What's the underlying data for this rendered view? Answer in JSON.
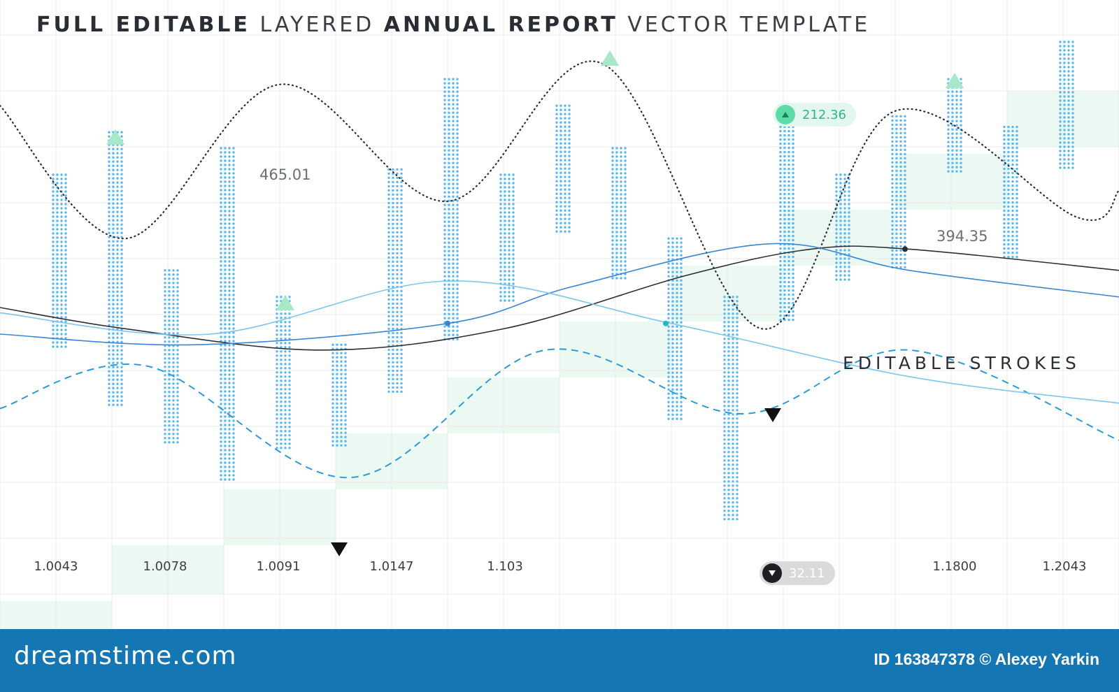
{
  "title": {
    "part1_bold": "FULL EDITABLE",
    "part2_light": "LAYERED",
    "part3_bold": "ANNUAL REPORT",
    "part4_light": "VECTOR TEMPLATE"
  },
  "annotations": {
    "value_a": "465.01",
    "value_b": "394.35",
    "strokes_label": "EDITABLE STROKES"
  },
  "badges": {
    "up": {
      "value": "212.36",
      "icon": "triangle-up-icon",
      "color": "#5cdba9"
    },
    "down": {
      "value": "32.11",
      "icon": "triangle-down-icon",
      "color": "#1d1f23"
    }
  },
  "footer": {
    "brand": "dreamstime.com",
    "credit": "ID 163847378 © Alexey Yarkin",
    "background": "#1576b4"
  },
  "colors": {
    "dots": "#5ab8ec",
    "mint": "#ecf9f2",
    "grid": "#e8eaec",
    "line_dark": "#2b2d33",
    "line_blue": "#3a86d6",
    "line_light": "#7cc6ef",
    "line_dashed": "#2a9ad9",
    "marker_up": "#a6e8c8",
    "marker_down": "#111111"
  },
  "chart_data": {
    "type": "line",
    "x_tick_labels": [
      "1.0043",
      "1.0078",
      "1.0091",
      "1.0147",
      "1.103",
      "1.1800",
      "1.2043"
    ],
    "grid": true,
    "series": [
      {
        "id": "dotted-wave",
        "style": "dotted",
        "color": "#2b2d33",
        "x": [
          0,
          180,
          400,
          640,
          860,
          1090,
          1280,
          1540,
          1600
        ],
        "y": [
          0.88,
          0.63,
          0.92,
          0.7,
          0.96,
          0.46,
          0.87,
          0.67,
          0.72
        ]
      },
      {
        "id": "dashed-wave",
        "style": "dashed",
        "color": "#2a9ad9",
        "x": [
          0,
          210,
          500,
          780,
          1060,
          1300,
          1600
        ],
        "y": [
          0.31,
          0.39,
          0.18,
          0.42,
          0.3,
          0.42,
          0.25
        ]
      },
      {
        "id": "dark-line",
        "style": "solid",
        "color": "#2b2d33",
        "x": [
          0,
          180,
          460,
          720,
          980,
          1160,
          1300,
          1600
        ],
        "y": [
          0.5,
          0.46,
          0.42,
          0.46,
          0.56,
          0.61,
          0.61,
          0.57
        ]
      },
      {
        "id": "blue-line",
        "style": "solid",
        "color": "#3a86d6",
        "x": [
          0,
          280,
          640,
          820,
          1100,
          1300,
          1600
        ],
        "y": [
          0.45,
          0.43,
          0.47,
          0.54,
          0.62,
          0.57,
          0.52
        ]
      },
      {
        "id": "light-line",
        "style": "solid",
        "color": "#7cc6ef",
        "x": [
          0,
          300,
          640,
          960,
          1300,
          1600
        ],
        "y": [
          0.49,
          0.45,
          0.55,
          0.47,
          0.37,
          0.32
        ]
      }
    ],
    "bars": [
      {
        "x": 85,
        "top": 0.75,
        "bottom": 0.42
      },
      {
        "x": 165,
        "top": 0.83,
        "bottom": 0.31
      },
      {
        "x": 245,
        "top": 0.57,
        "bottom": 0.24
      },
      {
        "x": 325,
        "top": 0.8,
        "bottom": 0.17
      },
      {
        "x": 405,
        "top": 0.52,
        "bottom": 0.23
      },
      {
        "x": 485,
        "top": 0.43,
        "bottom": 0.24
      },
      {
        "x": 565,
        "top": 0.76,
        "bottom": 0.34
      },
      {
        "x": 645,
        "top": 0.93,
        "bottom": 0.44
      },
      {
        "x": 725,
        "top": 0.75,
        "bottom": 0.51
      },
      {
        "x": 805,
        "top": 0.88,
        "bottom": 0.64
      },
      {
        "x": 885,
        "top": 0.8,
        "bottom": 0.55
      },
      {
        "x": 965,
        "top": 0.63,
        "bottom": 0.29
      },
      {
        "x": 1045,
        "top": 0.52,
        "bottom": 0.1
      },
      {
        "x": 1125,
        "top": 0.84,
        "bottom": 0.47
      },
      {
        "x": 1205,
        "top": 0.75,
        "bottom": 0.55
      },
      {
        "x": 1285,
        "top": 0.86,
        "bottom": 0.57
      },
      {
        "x": 1365,
        "top": 0.93,
        "bottom": 0.75
      },
      {
        "x": 1445,
        "top": 0.84,
        "bottom": 0.59
      },
      {
        "x": 1525,
        "top": 1.0,
        "bottom": 0.76
      }
    ],
    "up_markers_x": [
      165,
      408,
      872,
      1365
    ],
    "down_markers_x": [
      485,
      1105
    ]
  }
}
